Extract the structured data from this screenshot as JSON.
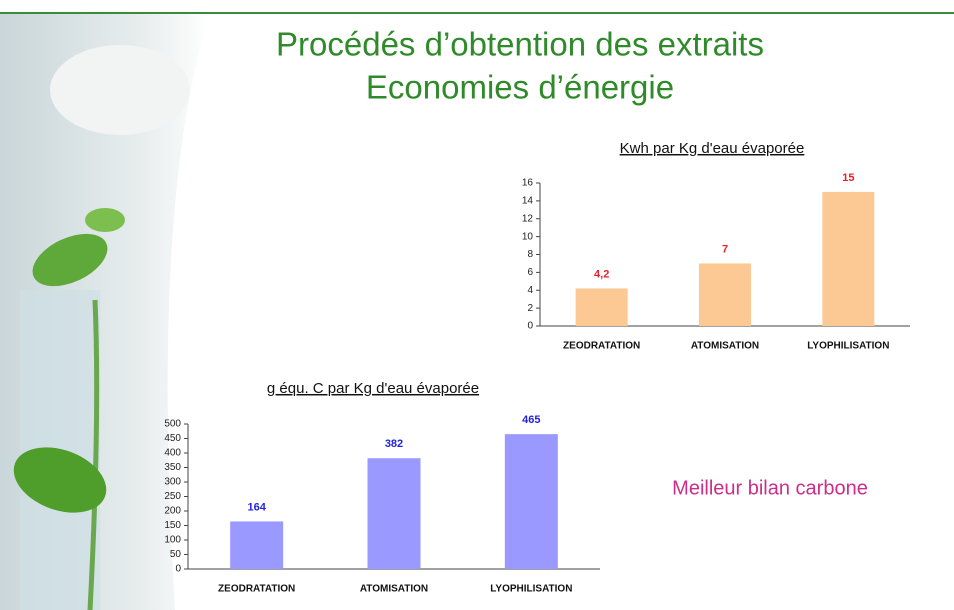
{
  "slide": {
    "title": [
      "Procédés d’obtention des extraits",
      "Economies d’énergie"
    ],
    "note": "Meilleur bilan carbone"
  },
  "chart_data": [
    {
      "type": "bar",
      "title": "Kwh par Kg d'eau évaporée",
      "categories": [
        "ZEODRATATION",
        "ATOMISATION",
        "LYOPHILISATION"
      ],
      "values": [
        4.2,
        7,
        15
      ],
      "value_labels": [
        "4,2",
        "7",
        "15"
      ],
      "color": "#fcc894",
      "label_color": "#e8202a",
      "ylim": [
        0,
        16
      ],
      "yticks": [
        0,
        2,
        4,
        6,
        8,
        10,
        12,
        14,
        16
      ]
    },
    {
      "type": "bar",
      "title": "g équ. C par Kg d'eau évaporée",
      "categories": [
        "ZEODRATATION",
        "ATOMISATION",
        "LYOPHILISATION"
      ],
      "values": [
        164,
        382,
        465
      ],
      "color": "#9999ff",
      "label_color": "#2222dd",
      "ylim": [
        0,
        500
      ],
      "yticks": [
        0,
        50,
        100,
        150,
        200,
        250,
        300,
        350,
        400,
        450,
        500
      ]
    }
  ]
}
